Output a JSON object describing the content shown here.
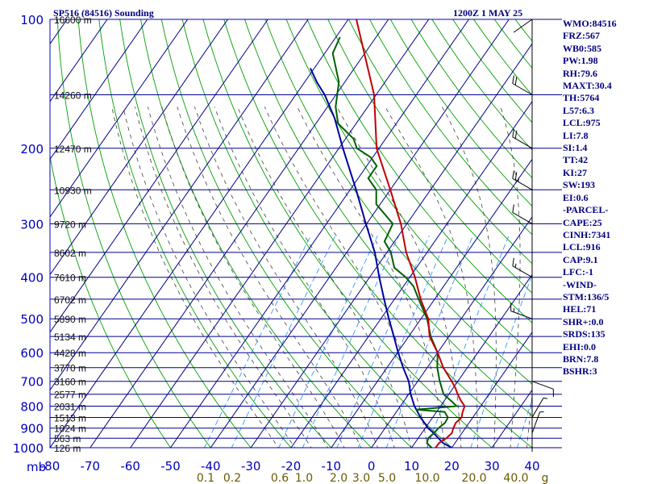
{
  "header": {
    "station": "SP516 (84516) Sounding",
    "valid": "1200Z  1 MAY 25"
  },
  "indices": [
    "WMO:84516",
    "FRZ:567",
    "WB0:585",
    "PW:1.98",
    "RH:79.6",
    "MAXT:30.4",
    "TH:5764",
    "L57:6.3",
    "LCL:975",
    "LI:7.8",
    "SI:1.4",
    "TT:42",
    "KI:27",
    "SW:193",
    "EI:0.6",
    "-PARCEL-",
    "CAPE:25",
    "CINH:7341",
    "LCL:916",
    "CAP:9.1",
    "LFC:-1",
    "-WIND-",
    "STM:136/5",
    "HEL:71",
    "SHR+:0.0",
    "SRDS:135",
    "EHI:0.0",
    "BRN:7.8",
    "BSHR:3"
  ],
  "colors": {
    "frame": "#0000c0",
    "isobar": "#00008b",
    "isotherm": "#00008b",
    "dry_adiabat": "#00a000",
    "moist_adiabat": "#404040",
    "mixing_ratio": "#3399ff",
    "temperature": "#c00000",
    "dewpoint": "#006000",
    "parcel": "#0000a0",
    "wind": "#000000"
  },
  "chart_data": {
    "type": "line",
    "diagram": "skew-T log-p",
    "title": "SP516 (84516) Sounding",
    "xlabel": "",
    "ylabel": "mb",
    "y_scale": "log",
    "xlim": [
      -80,
      40
    ],
    "ylim": [
      1000,
      100
    ],
    "pressure_ticks": [
      100,
      200,
      300,
      400,
      500,
      600,
      700,
      800,
      900,
      1000
    ],
    "temperature_ticks": [
      -80,
      -70,
      -60,
      -50,
      -40,
      -30,
      -20,
      -10,
      0,
      10,
      20,
      30,
      40
    ],
    "mixing_ratio_labels": [
      "0.1",
      "0.2",
      "0.6",
      "1.0",
      "2.0",
      "3.0",
      "5.0",
      "10.0",
      "20.0",
      "40.0",
      "g"
    ],
    "height_labels": [
      {
        "p": 100,
        "label": "16600 m"
      },
      {
        "p": 150,
        "label": "14260 m"
      },
      {
        "p": 200,
        "label": "12470 m"
      },
      {
        "p": 250,
        "label": "10930 m"
      },
      {
        "p": 300,
        "label": "9720 m"
      },
      {
        "p": 350,
        "label": "8602 m"
      },
      {
        "p": 400,
        "label": "7610 m"
      },
      {
        "p": 450,
        "label": "6702 m"
      },
      {
        "p": 500,
        "label": "5890 m"
      },
      {
        "p": 550,
        "label": "5134 m"
      },
      {
        "p": 600,
        "label": "4428 m"
      },
      {
        "p": 650,
        "label": "3770 m"
      },
      {
        "p": 700,
        "label": "3160 m"
      },
      {
        "p": 750,
        "label": "2577 m"
      },
      {
        "p": 800,
        "label": "2031 m"
      },
      {
        "p": 850,
        "label": "1513 m"
      },
      {
        "p": 900,
        "label": "1024 m"
      },
      {
        "p": 950,
        "label": "563 m"
      },
      {
        "p": 1000,
        "label": "126 m"
      }
    ],
    "series": [
      {
        "points": [
          {
            "p": 1000,
            "t": 16.0
          },
          {
            "p": 975,
            "t": 16.0
          },
          {
            "p": 950,
            "t": 17.0
          },
          {
            "p": 925,
            "t": 17.5
          },
          {
            "p": 900,
            "t": 17.0
          },
          {
            "p": 875,
            "t": 16.7
          },
          {
            "p": 850,
            "t": 17.2
          },
          {
            "p": 825,
            "t": 16.5
          },
          {
            "p": 800,
            "t": 16.0
          },
          {
            "p": 775,
            "t": 14.0
          },
          {
            "p": 750,
            "t": 12.2
          },
          {
            "p": 725,
            "t": 10.5
          },
          {
            "p": 700,
            "t": 8.5
          },
          {
            "p": 650,
            "t": 4.0
          },
          {
            "p": 600,
            "t": 0.0
          },
          {
            "p": 550,
            "t": -4.8
          },
          {
            "p": 500,
            "t": -8.2
          },
          {
            "p": 450,
            "t": -13.5
          },
          {
            "p": 400,
            "t": -18.7
          },
          {
            "p": 350,
            "t": -25.2
          },
          {
            "p": 300,
            "t": -31.5
          },
          {
            "p": 250,
            "t": -40.0
          },
          {
            "p": 200,
            "t": -50.6
          },
          {
            "p": 150,
            "t": -60.5
          },
          {
            "p": 100,
            "t": -78.0
          }
        ]
      },
      {
        "points": [
          {
            "p": 1000,
            "t": 15.0
          },
          {
            "p": 975,
            "t": 13.0
          },
          {
            "p": 950,
            "t": 12.5
          },
          {
            "p": 925,
            "t": 13.0
          },
          {
            "p": 900,
            "t": 13.3
          },
          {
            "p": 875,
            "t": 14.0
          },
          {
            "p": 850,
            "t": 13.8
          },
          {
            "p": 825,
            "t": 12.0
          },
          {
            "p": 815,
            "t": 4.5
          },
          {
            "p": 800,
            "t": 14.0
          },
          {
            "p": 780,
            "t": 12.0
          },
          {
            "p": 750,
            "t": 8.7
          },
          {
            "p": 700,
            "t": 5.5
          },
          {
            "p": 650,
            "t": 2.5
          },
          {
            "p": 600,
            "t": 0.0
          },
          {
            "p": 550,
            "t": -4.5
          },
          {
            "p": 500,
            "t": -8.5
          },
          {
            "p": 450,
            "t": -14.0
          },
          {
            "p": 420,
            "t": -17.5
          },
          {
            "p": 400,
            "t": -21.0
          },
          {
            "p": 380,
            "t": -25.5
          },
          {
            "p": 350,
            "t": -29.0
          },
          {
            "p": 330,
            "t": -32.5
          },
          {
            "p": 300,
            "t": -33.5
          },
          {
            "p": 270,
            "t": -41.0
          },
          {
            "p": 250,
            "t": -43.5
          },
          {
            "p": 235,
            "t": -47.5
          },
          {
            "p": 220,
            "t": -47.5
          },
          {
            "p": 210,
            "t": -50.5
          },
          {
            "p": 200,
            "t": -55.5
          },
          {
            "p": 190,
            "t": -58.0
          },
          {
            "p": 175,
            "t": -64.5
          },
          {
            "p": 160,
            "t": -68.0
          },
          {
            "p": 140,
            "t": -71.5
          },
          {
            "p": 120,
            "t": -78.0
          },
          {
            "p": 110,
            "t": -79.0
          }
        ]
      },
      {
        "points": [
          {
            "p": 1000,
            "t": 20.0
          },
          {
            "p": 975,
            "t": 17.0
          },
          {
            "p": 950,
            "t": 15.0
          },
          {
            "p": 925,
            "t": 13.0
          },
          {
            "p": 900,
            "t": 10.7
          },
          {
            "p": 850,
            "t": 7.0
          },
          {
            "p": 800,
            "t": 3.5
          },
          {
            "p": 750,
            "t": 0.5
          },
          {
            "p": 700,
            "t": -2.2
          },
          {
            "p": 650,
            "t": -6.0
          },
          {
            "p": 600,
            "t": -9.8
          },
          {
            "p": 550,
            "t": -13.7
          },
          {
            "p": 500,
            "t": -18.0
          },
          {
            "p": 450,
            "t": -22.6
          },
          {
            "p": 400,
            "t": -27.6
          },
          {
            "p": 350,
            "t": -33.0
          },
          {
            "p": 300,
            "t": -40.2
          },
          {
            "p": 250,
            "t": -48.5
          },
          {
            "p": 200,
            "t": -59.0
          },
          {
            "p": 170,
            "t": -66.3
          },
          {
            "p": 150,
            "t": -72.8
          },
          {
            "p": 140,
            "t": -77.0
          },
          {
            "p": 130,
            "t": -81.0
          }
        ]
      }
    ],
    "wind_barbs": [
      {
        "p": 100,
        "dir": 235,
        "spd": 0
      },
      {
        "p": 150,
        "dir": 300,
        "spd": 20
      },
      {
        "p": 200,
        "dir": 300,
        "spd": 20
      },
      {
        "p": 250,
        "dir": 300,
        "spd": 25
      },
      {
        "p": 300,
        "dir": 300,
        "spd": 10
      },
      {
        "p": 400,
        "dir": 300,
        "spd": 15
      },
      {
        "p": 500,
        "dir": 290,
        "spd": 15
      },
      {
        "p": 700,
        "dir": 110,
        "spd": 10
      },
      {
        "p": 850,
        "dir": 30,
        "spd": 5
      },
      {
        "p": 925,
        "dir": 20,
        "spd": 5
      }
    ]
  }
}
